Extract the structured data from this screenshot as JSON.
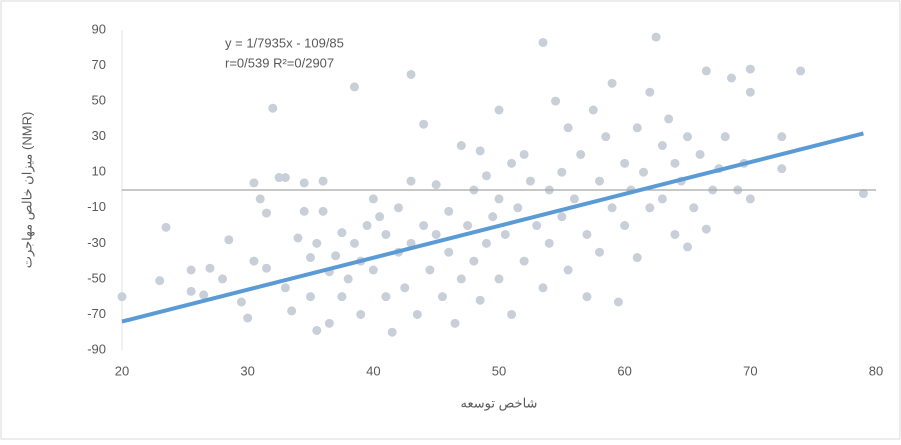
{
  "chart_data": {
    "type": "scatter",
    "annotation": "y = 1/7935x - 109/85",
    "annotation_stats": "r=0/539  R²=0/2907",
    "x_label": "شاخص توسعه",
    "y_label": "میزان خالص مهاجرت (NMR)",
    "series": [
      {
        "color": "#c9cfd8",
        "x": [
          20,
          23,
          23.5,
          25.5,
          25.5,
          26.5,
          27,
          28.5,
          28,
          29.5,
          30,
          30.5,
          30.5,
          31,
          31.5,
          31.5,
          32,
          32.5,
          33,
          33,
          33.5,
          34,
          34.5,
          34.5,
          35,
          35,
          35.5,
          35.5,
          36,
          36,
          36.5,
          36.5,
          37,
          37.5,
          37.5,
          38,
          38.5,
          38.5,
          39,
          39,
          39.5,
          40,
          40,
          40.5,
          41,
          41,
          41.5,
          42,
          42,
          42.5,
          43,
          43,
          43,
          43.5,
          44,
          44,
          44.5,
          45,
          45,
          45.5,
          46,
          46,
          46.5,
          47,
          47,
          47.5,
          48,
          48,
          48.5,
          48.5,
          49,
          49,
          49.5,
          50,
          50,
          50,
          50.5,
          51,
          51,
          51.5,
          52,
          52,
          52.5,
          53,
          53.5,
          53.5,
          54,
          54,
          54.5,
          55,
          55,
          55.5,
          55.5,
          56,
          56.5,
          57,
          57,
          57.5,
          58,
          58,
          58.5,
          59,
          59,
          59.5,
          60,
          60,
          60.5,
          61,
          61,
          61.5,
          62,
          62,
          62.5,
          63,
          63,
          63.5,
          64,
          64,
          64.5,
          65,
          65,
          65.5,
          66,
          66.5,
          66.5,
          67,
          67.5,
          68,
          68.5,
          69,
          69.5,
          70,
          70,
          70,
          72.5,
          72.5,
          74,
          79
        ],
        "values": [
          -60,
          -51,
          -21,
          -45,
          -57,
          -59,
          -44,
          -28,
          -50,
          -63,
          -72,
          4,
          -40,
          -5,
          -44,
          -13,
          46,
          7,
          7,
          -55,
          -68,
          -27,
          -12,
          4,
          -38,
          -60,
          -30,
          -79,
          -12,
          5,
          -46,
          -75,
          -37,
          -24,
          -60,
          -50,
          58,
          -30,
          -40,
          -70,
          -20,
          -5,
          -45,
          -15,
          -25,
          -60,
          -80,
          -10,
          -35,
          -55,
          65,
          5,
          -30,
          -70,
          37,
          -20,
          -45,
          3,
          -25,
          -60,
          -12,
          -35,
          -75,
          25,
          -50,
          -20,
          0,
          -40,
          22,
          -62,
          8,
          -30,
          -15,
          45,
          -5,
          -50,
          -25,
          15,
          -70,
          -10,
          20,
          -40,
          5,
          -20,
          83,
          -55,
          0,
          -30,
          50,
          10,
          -15,
          35,
          -45,
          -5,
          20,
          -25,
          -60,
          45,
          5,
          -35,
          30,
          -10,
          60,
          -63,
          15,
          -20,
          0,
          35,
          -38,
          10,
          55,
          -10,
          86,
          25,
          -5,
          40,
          15,
          -25,
          5,
          30,
          -32,
          -10,
          20,
          67,
          -22,
          0,
          12,
          30,
          63,
          0,
          15,
          68,
          55,
          -5,
          30,
          12,
          67,
          -2
        ]
      }
    ],
    "trendline": {
      "color": "#5b9bd5",
      "slope": 1.7935,
      "intercept": -109.85
    },
    "zero_line": true,
    "xlim": [
      20,
      80
    ],
    "xticks": [
      20,
      30,
      40,
      50,
      60,
      70,
      80
    ],
    "ylim": [
      -90,
      90
    ],
    "yticks": [
      -90,
      -70,
      -50,
      -30,
      -10,
      10,
      30,
      50,
      70,
      90
    ]
  }
}
